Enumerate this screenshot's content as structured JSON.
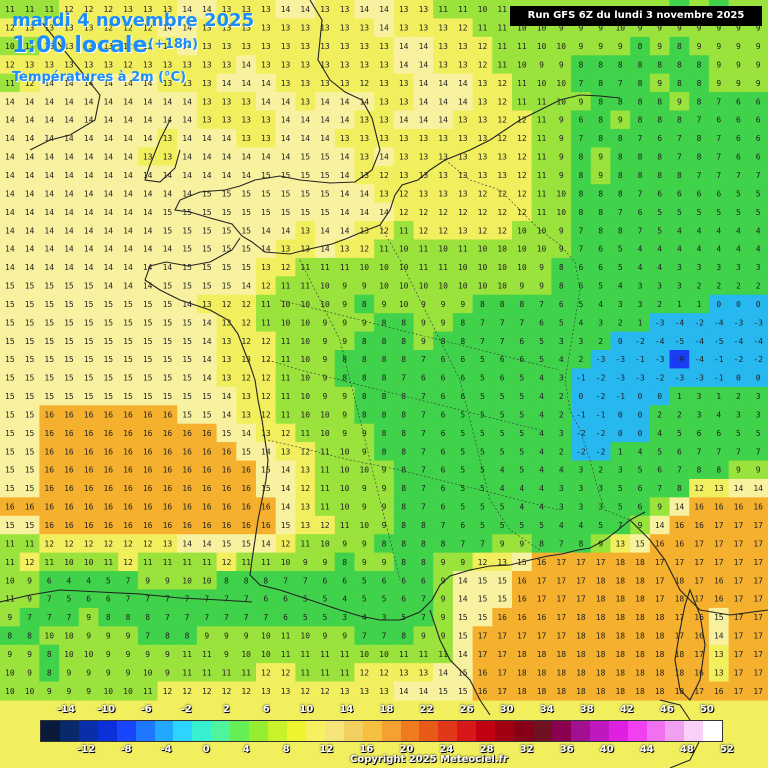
{
  "header": {
    "date": "mardi 4 novembre 2025",
    "time": "1:00 locale",
    "lead": "(+18h)",
    "variable": "Températures à 2m (°C)"
  },
  "run_info": "Run GFS 6Z du lundi 3 novembre 2025",
  "copyright": "Copyright 2025 Meteociel.fr",
  "scale": {
    "top_labels": [
      "-14",
      "-10",
      "-6",
      "-2",
      "2",
      "6",
      "10",
      "14",
      "18",
      "22",
      "26",
      "30",
      "34",
      "38",
      "42",
      "46",
      "50"
    ],
    "bottom_labels": [
      "-12",
      "-8",
      "-4",
      "0",
      "4",
      "8",
      "12",
      "16",
      "20",
      "24",
      "28",
      "32",
      "36",
      "40",
      "44",
      "48",
      "52"
    ],
    "colors": [
      "#0a1a3a",
      "#082a6a",
      "#0a2ea8",
      "#0b30d9",
      "#1a45ff",
      "#1e78ff",
      "#22a8ff",
      "#2dd4ff",
      "#36f0d0",
      "#4ef59c",
      "#66ee55",
      "#95ef30",
      "#c8f22a",
      "#eef530",
      "#f7f060",
      "#f6e47a",
      "#f2d060",
      "#f5c040",
      "#f5a030",
      "#f07a20",
      "#e85a18",
      "#e03818",
      "#d81818",
      "#c00010",
      "#a00010",
      "#880018",
      "#701020",
      "#8a0050",
      "#a01090",
      "#c018c0",
      "#e020e0",
      "#f040f0",
      "#f070f0",
      "#f0a0f0",
      "#f8d0f8",
      "#ffffff"
    ]
  },
  "colors": {
    "warm": "#f5b02e",
    "mild": "#f2ef5e",
    "pale": "#f8f2a0",
    "cool": "#9ae23c",
    "cold": "#3fd24a",
    "freeze": "#27b8f0",
    "deep": "#1a3cf5"
  },
  "map": {
    "cols": 39,
    "rows": 38,
    "temperatures": [
      "11 11 11 12 12 12 13 13 13 14 14 13 13 13 14 14 13 13 14 14 13 13 11 11 10 11 10 9 9 9 10 9 9 9 8 9 8 9 9",
      "12 13 13 13 13 12 12 12 14 14 13 13 13 13 13 13 13 13 13 14 13 13 13 12 11 11 10 10 9 9 9 10 9 9 9 9 9 9 9",
      "10 11 13 13 13 13 12 12 13 14 13 13 13 13 13 13 13 13 13 13 14 14 13 13 12 11 11 10 10 9 9 9 8 9 8 9 9 9 9",
      "12 13 13 13 13 13 12 13 13 13 13 13 14 13 13 13 13 13 13 13 14 14 13 13 12 11 10 9 9 8 8 8 8 8 8 8 9 9 9",
      "11 12 14 14 14 14 14 14 13 13 13 14 14 14 13 13 13 13 12 13 13 14 14 14 13 12 11 10 10 7 8 7 8 9 8 8 9 9 9",
      "14 14 14 14 14 14 14 14 14 14 13 13 13 14 14 13 14 14 14 13 13 14 14 14 13 12 11 11 10 9 8 8 8 8 9 8 7 6 6",
      "14 14 14 14 14 14 14 14 14 14 13 13 13 13 14 14 14 14 13 13 14 14 14 13 13 12 12 11 9 6 8 9 8 8 8 7 6 6 6",
      "14 14 14 14 14 14 14 14 13 14 14 14 13 13 14 14 14 13 13 13 13 13 13 13 13 12 12 11 9 7 8 8 7 6 7 8 7 6 6",
      "14 14 14 14 14 14 14 13 13 14 14 14 14 14 14 15 15 14 13 14 13 13 13 13 13 13 12 11 9 8 9 8 8 8 7 8 7 6 6",
      "14 14 14 14 14 14 14 14 14 14 14 14 14 15 15 15 15 14 13 12 13 13 13 13 13 13 12 11 9 8 9 8 8 8 8 7 7 7 7",
      "14 14 14 14 14 14 14 14 14 14 15 15 15 15 15 15 15 14 14 13 12 13 13 13 12 12 12 11 10 8 8 8 7 6 6 6 6 5 5",
      "14 14 14 14 14 14 14 14 15 15 15 15 15 15 15 15 15 14 14 14 12 12 12 12 12 12 12 11 10 8 8 7 6 5 5 5 5 5 5",
      "14 14 14 14 14 14 14 14 15 15 15 15 15 14 14 13 14 14 13 12 11 12 12 13 12 12 10 10 9 7 8 8 7 5 4 4 4 4 4",
      "14 14 14 14 14 14 14 14 14 15 15 15 15 14 13 13 14 13 12 11 10 11 10 11 10 10 10 10 9 7 6 5 4 4 4 4 4 4 4",
      "14 14 14 14 14 14 14 14 14 15 15 15 15 13 12 11 11 11 10 10 10 11 11 10 10 10 10 9 8 6 6 5 4 4 3 3 3 3 3",
      "15 15 15 15 15 14 14 14 15 15 15 15 14 12 11 11 10 9 9 10 10 10 10 10 10 10 9 9 8 6 5 4 3 3 3 2 2 2 2",
      "15 15 15 15 15 15 15 15 15 14 13 12 12 11 10 10 10 9 8 9 10 9 9 9 8 8 8 7 6 5 4 3 3 2 1 1 0 0 0",
      "15 15 15 15 15 15 15 15 15 15 14 13 12 11 10 10 9 9 9 8 8 9 9 8 7 7 7 6 5 4 3 2 1 -3 -4 -2 -4 -3 -3",
      "15 15 15 15 15 15 15 15 15 15 14 13 12 12 11 10 9 9 8 8 8 9 8 8 7 7 6 5 3 3 2 0 -2 -4 -5 -4 -5 -4 -4",
      "15 15 15 15 15 15 15 15 15 15 14 13 13 12 11 10 9 8 8 8 8 7 6 6 5 6 6 5 4 2 -3 -3 -1 -3 -9 -4 -1 -2 -2",
      "15 15 15 15 15 15 15 15 15 15 14 13 12 12 11 10 9 8 8 8 7 6 6 6 5 6 5 4 3 -1 -2 -3 -3 -2 -3 -3 -1 0 0",
      "15 15 15 15 15 15 15 15 15 15 15 14 13 12 11 10 9 9 8 8 8 7 6 6 5 5 5 4 2 0 -2 -1 0 0 1 3 1 2 3",
      "15 15 16 16 16 16 16 16 16 15 15 14 13 12 11 10 10 9 8 8 8 7 6 5 5 5 5 4 2 -1 -1 0 0 2 2 3 4 3 3",
      "15 15 16 16 16 16 16 16 16 16 16 15 14 13 12 11 10 9 9 8 8 7 6 5 5 5 5 4 3 -2 -2 0 0 4 5 6 6 5 5",
      "15 15 16 16 16 16 16 16 16 16 16 16 15 14 13 12 11 10 9 8 8 7 6 5 5 5 5 4 2 -2 -2 1 4 5 6 7 7 7 7",
      "15 15 16 16 16 16 16 16 16 16 16 16 16 15 14 13 11 10 10 9 8 7 6 5 5 4 5 4 4 3 2 3 5 6 7 8 8 9 9",
      "15 15 16 16 16 16 16 16 16 16 16 16 16 15 14 12 11 10 9 9 8 7 6 5 5 4 4 4 3 3 3 5 6 7 8 12 13 14 14",
      "16 16 16 16 16 16 16 16 16 16 16 16 16 16 14 13 11 10 9 9 8 7 6 5 5 5 4 4 3 3 3 5 6 9 14 16 16 16 16",
      "15 15 16 16 16 16 16 16 16 16 16 16 16 16 15 13 12 11 10 9 8 8 7 6 5 5 5 5 4 4 5 7 9 14 16 16 17 17 17",
      "11 11 12 12 12 12 12 12 13 14 14 15 15 14 12 11 10 9 9 8 8 8 8 7 7 9 9 8 7 8 9 13 15 16 16 17 17 17 17",
      "11 12 11 10 10 11 12 11 11 11 11 12 11 11 10 9 9 8 9 9 8 8 9 9 12 13 15 16 17 17 17 18 18 17 17 17 17 17 17",
      "10 9 6 4 4 5 7 9 9 10 10 8 8 8 7 7 6 6 5 6 6 6 9 14 15 15 16 17 17 17 18 18 18 17 18 17 16 17 17",
      "11 9 7 5 6 6 7 7 7 7 7 7 7 6 6 5 5 4 5 5 6 7 9 14 15 15 16 17 17 17 18 18 18 17 18 17 16 17 17",
      "9 7 7 7 9 8 8 8 7 7 7 7 7 7 6 5 5 3 4 3 5 7 9 15 15 16 16 16 17 18 18 18 18 18 17 16 15 17 17",
      "8 8 10 10 9 9 9 7 8 8 9 9 9 10 11 10 9 9 7 7 8 9 9 15 17 17 17 17 17 18 18 18 18 18 17 16 14 17 17",
      "9 9 8 10 10 9 9 9 9 11 11 9 10 10 11 11 11 11 10 10 11 11 11 14 17 17 18 18 18 18 18 18 18 18 18 17 13 17 17",
      "10 9 8 9 9 9 9 10 9 11 11 11 11 12 12 11 11 11 12 12 13 13 14 15 16 17 18 18 18 18 18 18 18 18 18 16 13 17 17",
      "10 10 9 9 9 10 10 11 12 12 12 12 12 13 13 12 12 13 13 13 14 14 15 15 16 17 18 18 18 18 18 18 18 18 18 17 16 17 17"
    ]
  }
}
